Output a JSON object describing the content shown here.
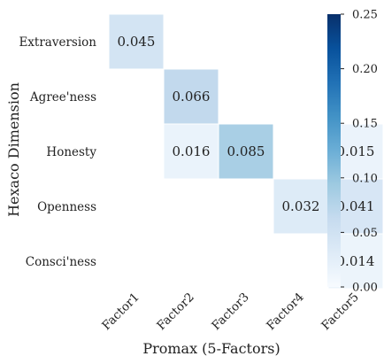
{
  "chart_data": {
    "type": "heatmap",
    "xlabel": "Promax (5-Factors)",
    "ylabel": "Hexaco Dimension",
    "x_categories": [
      "Factor1",
      "Factor2",
      "Factor3",
      "Factor4",
      "Factor5"
    ],
    "y_categories": [
      "Extraversion",
      "Agree'ness",
      "Honesty",
      "Openness",
      "Consci'ness"
    ],
    "values": [
      [
        0.045,
        null,
        null,
        null,
        null
      ],
      [
        null,
        0.066,
        null,
        null,
        null
      ],
      [
        null,
        0.016,
        0.085,
        null,
        0.015
      ],
      [
        null,
        null,
        null,
        0.032,
        0.041
      ],
      [
        null,
        null,
        null,
        null,
        0.014
      ]
    ],
    "value_labels": [
      [
        "0.045",
        null,
        null,
        null,
        null
      ],
      [
        null,
        "0.066",
        null,
        null,
        null
      ],
      [
        null,
        "0.016",
        "0.085",
        null,
        "0.015"
      ],
      [
        null,
        null,
        null,
        "0.032",
        "0.041"
      ],
      [
        null,
        null,
        null,
        null,
        "0.014"
      ]
    ],
    "colorbar": {
      "colormap": "Blues",
      "min": 0.0,
      "max": 0.25,
      "ticks": [
        "0.00",
        "0.05",
        "0.10",
        "0.15",
        "0.20",
        "0.25"
      ],
      "tick_values": [
        0.0,
        0.05,
        0.1,
        0.15,
        0.2,
        0.25
      ]
    },
    "grid": false
  }
}
